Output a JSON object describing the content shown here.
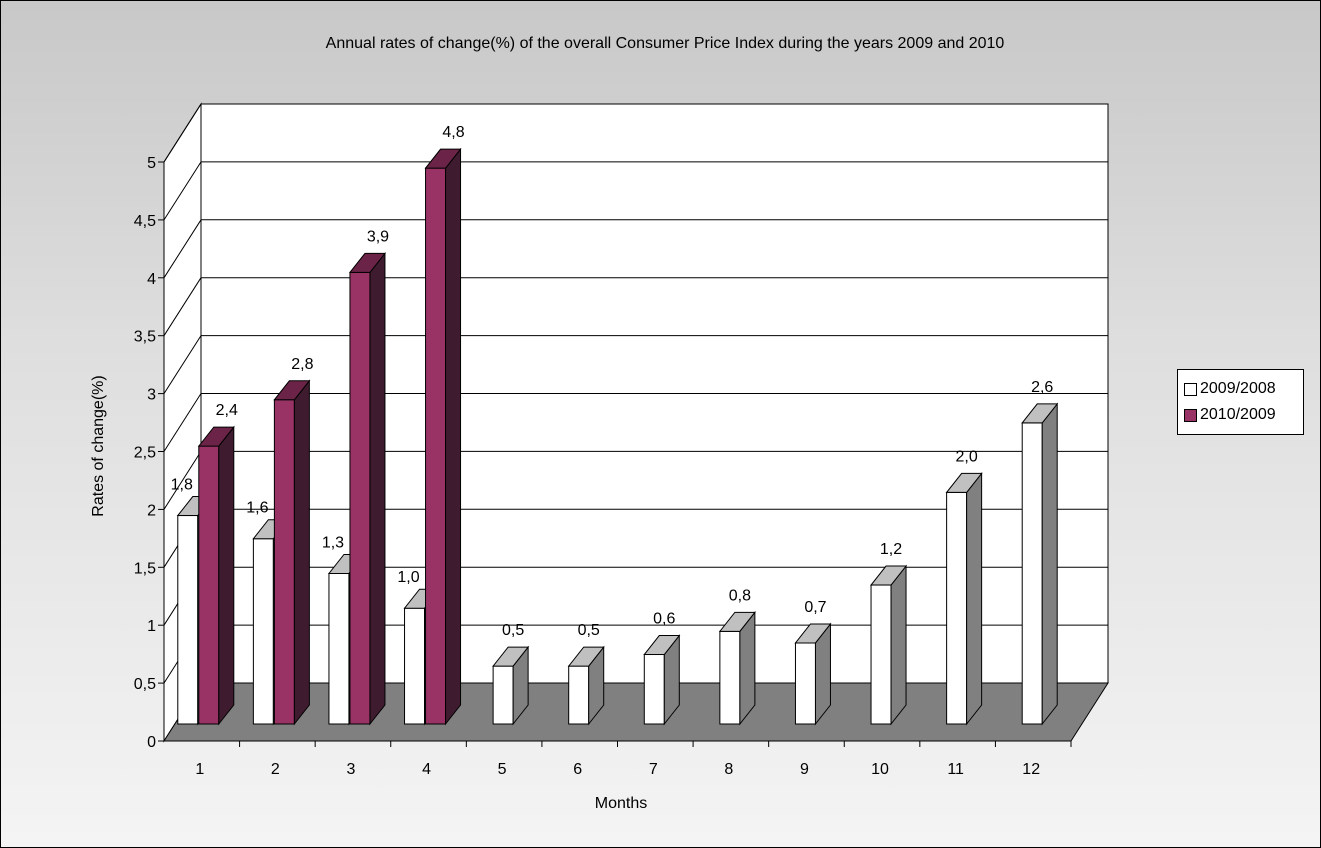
{
  "chart_data": {
    "type": "bar",
    "title": "Annual rates of change(%) of the overall Consumer Price Index during the years 2009 and 2010",
    "xlabel": "Months",
    "ylabel": "Rates of change(%)",
    "categories": [
      "1",
      "2",
      "3",
      "4",
      "5",
      "6",
      "7",
      "8",
      "9",
      "10",
      "11",
      "12"
    ],
    "series": [
      {
        "name": "2009/2008",
        "values": [
          1.8,
          1.6,
          1.3,
          1.0,
          0.5,
          0.5,
          0.6,
          0.8,
          0.7,
          1.2,
          2.0,
          2.6
        ],
        "labels": [
          "1,8",
          "1,6",
          "1,3",
          "1,0",
          "0,5",
          "0,5",
          "0,6",
          "0,8",
          "0,7",
          "1,2",
          "2,0",
          "2,6"
        ],
        "color": "#ffffff",
        "side_color": "#808080",
        "top_color": "#c0c0c0"
      },
      {
        "name": "2010/2009",
        "values": [
          2.4,
          2.8,
          3.9,
          4.8,
          null,
          null,
          null,
          null,
          null,
          null,
          null,
          null
        ],
        "labels": [
          "2,4",
          "2,8",
          "3,9",
          "4,8",
          "",
          "",
          "",
          "",
          "",
          "",
          "",
          ""
        ],
        "color": "#993366",
        "side_color": "#3e1b2e",
        "top_color": "#6b2447"
      }
    ],
    "yticks": [
      "0",
      "0,5",
      "1",
      "1,5",
      "2",
      "2,5",
      "3",
      "3,5",
      "4",
      "4,5",
      "5"
    ],
    "ylim": [
      0,
      5
    ],
    "grid": true,
    "legend_position": "right",
    "floor_color": "#808080"
  }
}
